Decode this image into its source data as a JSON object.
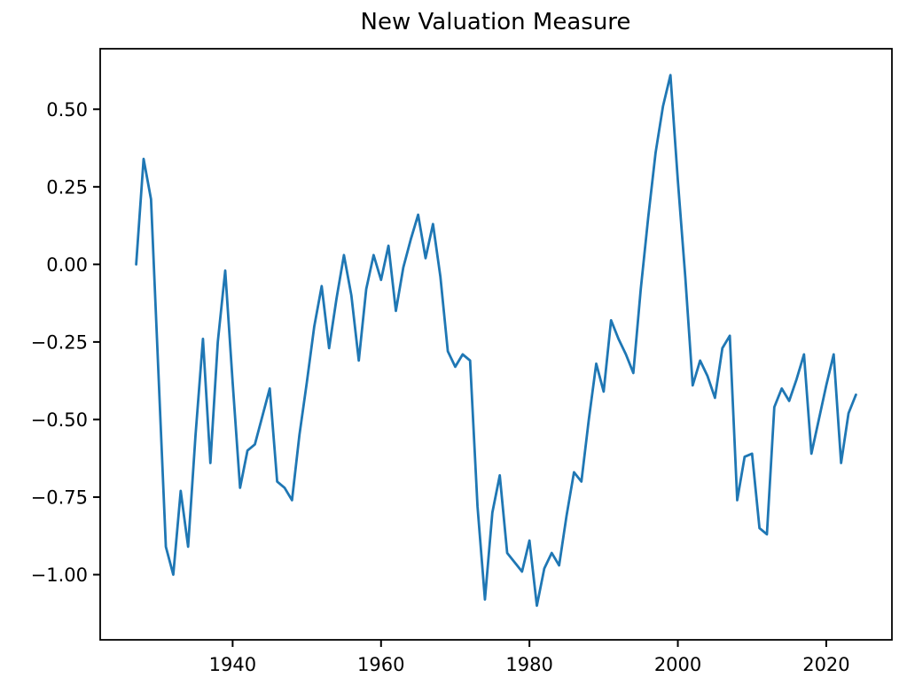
{
  "figure": {
    "background": "#ffffff",
    "axes_edge_color": "#000000",
    "tick_color": "#000000"
  },
  "chart_data": {
    "type": "line",
    "title": "New Valuation Measure",
    "xlabel": "",
    "ylabel": "",
    "grid": false,
    "legend": null,
    "line_color": "#1f77b4",
    "line_width": 2.8,
    "xlim": [
      1922.15,
      2028.85
    ],
    "ylim": [
      -1.21,
      0.695
    ],
    "xticks": [
      1940,
      1960,
      1980,
      2000,
      2020
    ],
    "xtick_labels": [
      "1940",
      "1960",
      "1980",
      "2000",
      "2020"
    ],
    "yticks": [
      0.5,
      0.25,
      0.0,
      -0.25,
      -0.5,
      -0.75,
      -1.0
    ],
    "ytick_labels": [
      "0.50",
      "0.25",
      "0.00",
      "−0.25",
      "−0.50",
      "−0.75",
      "−1.00"
    ],
    "x": [
      1927,
      1928,
      1929,
      1930,
      1931,
      1932,
      1933,
      1934,
      1935,
      1936,
      1937,
      1938,
      1939,
      1940,
      1941,
      1942,
      1943,
      1944,
      1945,
      1946,
      1947,
      1948,
      1949,
      1950,
      1951,
      1952,
      1953,
      1954,
      1955,
      1956,
      1957,
      1958,
      1959,
      1960,
      1961,
      1962,
      1963,
      1964,
      1965,
      1966,
      1967,
      1968,
      1969,
      1970,
      1971,
      1972,
      1973,
      1974,
      1975,
      1976,
      1977,
      1978,
      1979,
      1980,
      1981,
      1982,
      1983,
      1984,
      1985,
      1986,
      1987,
      1988,
      1989,
      1990,
      1991,
      1992,
      1993,
      1994,
      1995,
      1996,
      1997,
      1998,
      1999,
      2000,
      2001,
      2002,
      2003,
      2004,
      2005,
      2006,
      2007,
      2008,
      2009,
      2010,
      2011,
      2012,
      2013,
      2014,
      2015,
      2016,
      2017,
      2018,
      2019,
      2020,
      2021,
      2022,
      2023,
      2024
    ],
    "series": [
      {
        "name": "New Valuation Measure",
        "values": [
          0.0,
          0.34,
          0.21,
          -0.35,
          -0.91,
          -1.0,
          -0.73,
          -0.91,
          -0.55,
          -0.24,
          -0.64,
          -0.25,
          -0.02,
          -0.38,
          -0.72,
          -0.6,
          -0.58,
          -0.49,
          -0.4,
          -0.7,
          -0.72,
          -0.76,
          -0.55,
          -0.38,
          -0.2,
          -0.07,
          -0.27,
          -0.11,
          0.03,
          -0.1,
          -0.31,
          -0.08,
          0.03,
          -0.05,
          0.06,
          -0.15,
          -0.01,
          0.08,
          0.16,
          0.02,
          0.13,
          -0.04,
          -0.28,
          -0.33,
          -0.29,
          -0.31,
          -0.78,
          -1.08,
          -0.8,
          -0.68,
          -0.93,
          -0.96,
          -0.99,
          -0.89,
          -1.1,
          -0.98,
          -0.93,
          -0.97,
          -0.81,
          -0.67,
          -0.7,
          -0.5,
          -0.32,
          -0.41,
          -0.18,
          -0.24,
          -0.29,
          -0.35,
          -0.08,
          0.15,
          0.36,
          0.51,
          0.61,
          0.27,
          -0.04,
          -0.39,
          -0.31,
          -0.36,
          -0.43,
          -0.27,
          -0.23,
          -0.76,
          -0.62,
          -0.61,
          -0.85,
          -0.87,
          -0.46,
          -0.4,
          -0.44,
          -0.37,
          -0.29,
          -0.61,
          -0.5,
          -0.39,
          -0.29,
          -0.64,
          -0.48,
          -0.42
        ]
      }
    ]
  }
}
